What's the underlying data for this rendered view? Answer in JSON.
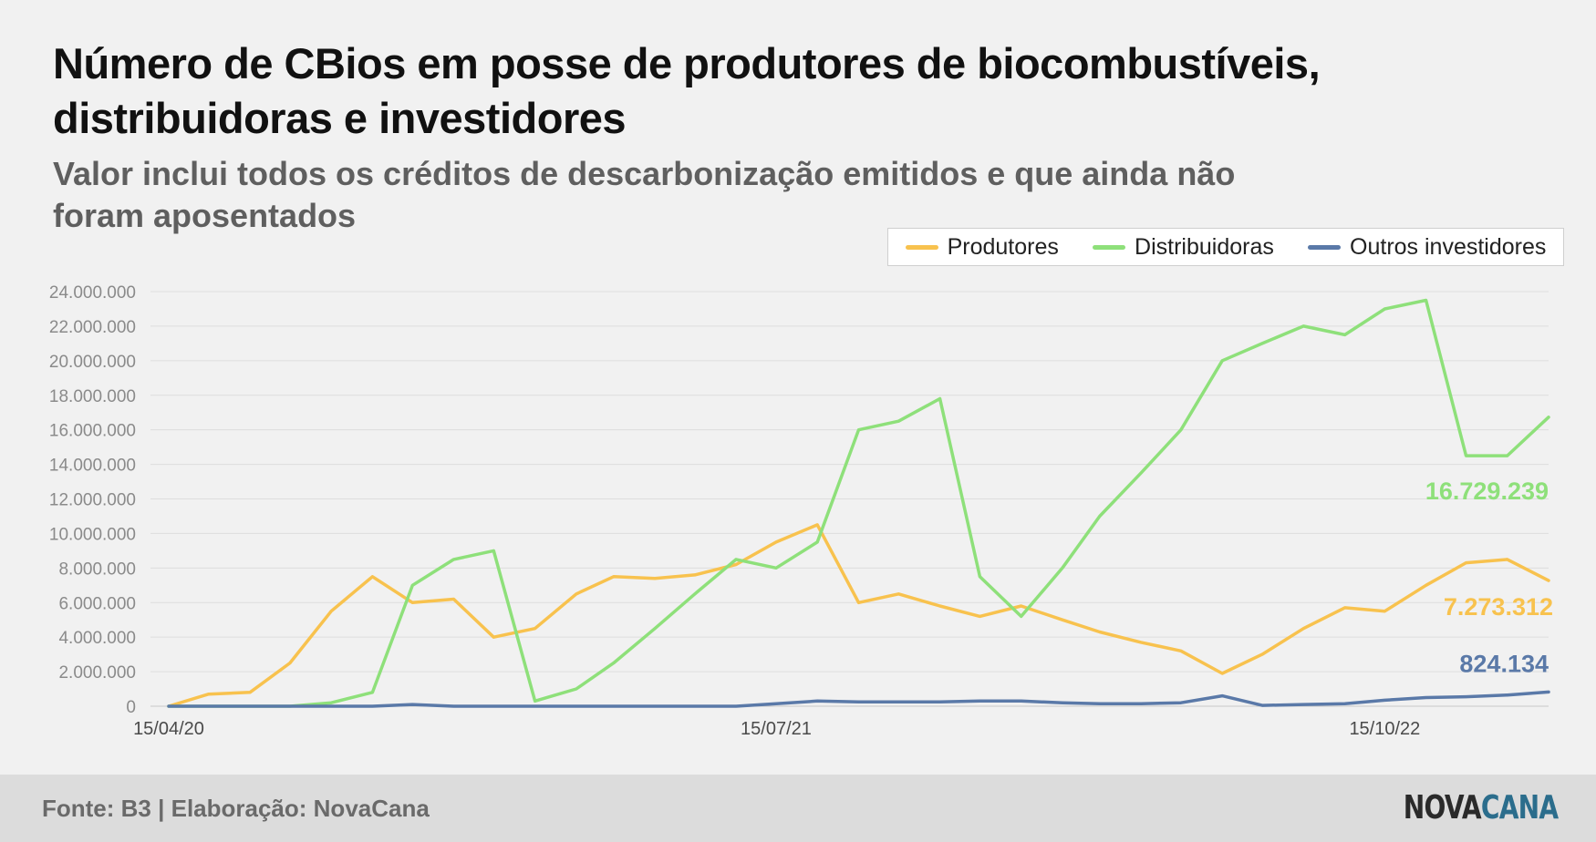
{
  "title": "Número de CBios em posse de produtores de biocombustíveis, distribuidoras e investidores",
  "subtitle": "Valor inclui todos os créditos de descarbonização emitidos e que ainda não foram aposentados",
  "footer": {
    "source": "Fonte: B3 | Elaboração: NovaCana",
    "logo_part1": "NOVA",
    "logo_part2": "CANA"
  },
  "chart_data": {
    "type": "line",
    "x_tick_labels": [
      "15/04/20",
      "15/07/21",
      "15/10/22"
    ],
    "x": [
      "2020-04-15",
      "2020-05-15",
      "2020-06-15",
      "2020-07-15",
      "2020-08-15",
      "2020-09-15",
      "2020-10-15",
      "2020-11-15",
      "2020-12-15",
      "2021-01-15",
      "2021-02-15",
      "2021-03-15",
      "2021-04-15",
      "2021-05-15",
      "2021-06-15",
      "2021-07-15",
      "2021-08-15",
      "2021-09-15",
      "2021-10-15",
      "2021-11-15",
      "2021-12-15",
      "2022-01-15",
      "2022-02-15",
      "2022-03-15",
      "2022-04-15",
      "2022-05-15",
      "2022-06-15",
      "2022-07-15",
      "2022-08-15",
      "2022-09-15",
      "2022-10-15",
      "2022-11-15",
      "2022-12-15",
      "2023-01-15",
      "2023-02-15"
    ],
    "y_tick_labels": [
      "0",
      "2.000.000",
      "4.000.000",
      "6.000.000",
      "8.000.000",
      "10.000.000",
      "12.000.000",
      "14.000.000",
      "16.000.000",
      "18.000.000",
      "20.000.000",
      "22.000.000",
      "24.000.000"
    ],
    "ylim": [
      0,
      24000000
    ],
    "grid": true,
    "legend_position": "top-right",
    "series": [
      {
        "name": "Produtores",
        "color": "#f8c24e",
        "end_label": "7.273.312",
        "values": [
          0,
          700000,
          800000,
          2500000,
          5500000,
          7500000,
          6000000,
          6200000,
          4000000,
          4500000,
          6500000,
          7500000,
          7400000,
          7600000,
          8200000,
          9500000,
          10500000,
          6000000,
          6500000,
          5800000,
          5200000,
          5800000,
          5000000,
          4300000,
          3700000,
          3200000,
          1900000,
          3000000,
          4500000,
          5700000,
          5500000,
          7000000,
          8300000,
          8500000,
          7273312
        ]
      },
      {
        "name": "Distribuidoras",
        "color": "#8ee07a",
        "end_label": "16.729.239",
        "values": [
          0,
          0,
          0,
          0,
          200000,
          800000,
          7000000,
          8500000,
          9000000,
          300000,
          1000000,
          2500000,
          4500000,
          6500000,
          8500000,
          8000000,
          9500000,
          16000000,
          16500000,
          17800000,
          7500000,
          5200000,
          8000000,
          11000000,
          13500000,
          16000000,
          20000000,
          21000000,
          22000000,
          21500000,
          23000000,
          23500000,
          14500000,
          14500000,
          16729239
        ]
      },
      {
        "name": "Outros investidores",
        "color": "#5a79a8",
        "end_label": "824.134",
        "values": [
          0,
          0,
          0,
          0,
          0,
          0,
          100000,
          0,
          0,
          0,
          0,
          0,
          0,
          0,
          0,
          150000,
          300000,
          250000,
          250000,
          250000,
          300000,
          300000,
          200000,
          150000,
          150000,
          200000,
          600000,
          50000,
          100000,
          150000,
          350000,
          500000,
          550000,
          650000,
          824134
        ]
      }
    ]
  }
}
